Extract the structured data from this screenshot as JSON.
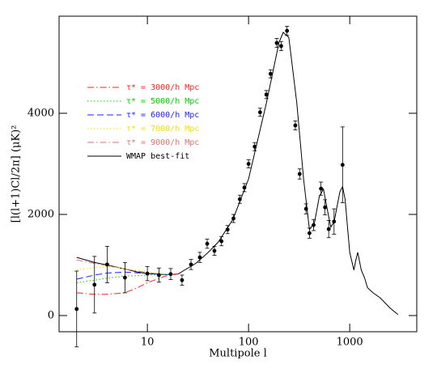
{
  "chart_data": {
    "type": "line",
    "x_label": "Multipole l",
    "y_label": "[l(l+1)Cl/2π] (μK)²",
    "xscale": "log",
    "xlim": [
      1.34,
      4600
    ],
    "ylim": [
      -320,
      5920
    ],
    "xticks": [
      10,
      100,
      1000
    ],
    "yticks": [
      0,
      2000,
      4000
    ],
    "series": [
      {
        "name": "τ* = 3000/h Mpc",
        "color": "#ff2020",
        "dash": "dashdot",
        "x": [
          2,
          3,
          4,
          6,
          8,
          10,
          15,
          20
        ],
        "values": [
          450,
          420,
          420,
          450,
          550,
          650,
          780,
          820
        ]
      },
      {
        "name": "τ* = 5000/h Mpc",
        "color": "#00d000",
        "dash": "dotted",
        "x": [
          2,
          3,
          4,
          6,
          8,
          10,
          15,
          20
        ],
        "values": [
          650,
          700,
          740,
          780,
          790,
          800,
          810,
          820
        ]
      },
      {
        "name": "τ* = 6000/h Mpc",
        "color": "#2020ff",
        "dash": "dashed",
        "x": [
          2,
          3,
          4,
          6,
          8,
          10,
          15,
          20
        ],
        "values": [
          720,
          800,
          840,
          860,
          845,
          830,
          810,
          820
        ]
      },
      {
        "name": "τ* = 7000/h Mpc",
        "color": "#f0e000",
        "dash": "dotted",
        "x": [
          2,
          3,
          4,
          6,
          8,
          10,
          15,
          20
        ],
        "values": [
          900,
          950,
          970,
          930,
          890,
          860,
          815,
          820
        ]
      },
      {
        "name": "τ* = 9000/h Mpc",
        "color": "#e07070",
        "dash": "dashdot",
        "x": [
          2,
          3,
          4,
          6,
          8,
          10,
          15,
          20
        ],
        "values": [
          1100,
          1030,
          990,
          920,
          880,
          850,
          810,
          820
        ]
      },
      {
        "name": "WMAP best-fit",
        "color": "#000000",
        "dash": "solid",
        "x": [
          2,
          3,
          4,
          6,
          8,
          10,
          15,
          20,
          30,
          40,
          50,
          70,
          100,
          150,
          200,
          220,
          250,
          300,
          350,
          400,
          450,
          500,
          550,
          600,
          650,
          700,
          800,
          850,
          900,
          1000,
          1100,
          1150,
          1200,
          1300,
          1400,
          1500,
          1700,
          2000,
          2500,
          3000
        ],
        "values": [
          1150,
          1050,
          1000,
          920,
          860,
          830,
          810,
          820,
          1030,
          1250,
          1450,
          1900,
          2700,
          4200,
          5400,
          5600,
          5500,
          4200,
          2700,
          1700,
          1850,
          2350,
          2500,
          2100,
          1750,
          1850,
          2450,
          2550,
          2300,
          1250,
          900,
          1100,
          1250,
          900,
          750,
          550,
          450,
          350,
          150,
          20
        ]
      }
    ],
    "measurements": {
      "color": "#000000",
      "x": [
        2,
        3,
        4,
        6,
        10,
        13,
        17,
        22,
        27,
        33,
        39,
        46,
        54,
        62,
        71,
        82,
        91,
        100,
        115,
        130,
        150,
        165,
        190,
        210,
        240,
        290,
        320,
        370,
        400,
        440,
        520,
        570,
        620,
        700,
        850
      ],
      "values": [
        130,
        610,
        1010,
        750,
        830,
        800,
        820,
        700,
        1010,
        1150,
        1420,
        1280,
        1470,
        1700,
        1920,
        2300,
        2530,
        3000,
        3340,
        4020,
        4370,
        4780,
        5390,
        5330,
        5630,
        3760,
        2800,
        2110,
        1630,
        1790,
        2510,
        2140,
        1710,
        1860,
        2980
      ],
      "errors": [
        750,
        560,
        360,
        300,
        140,
        140,
        110,
        100,
        100,
        100,
        90,
        90,
        90,
        80,
        80,
        80,
        80,
        80,
        80,
        80,
        80,
        80,
        90,
        90,
        90,
        90,
        100,
        100,
        100,
        110,
        130,
        150,
        170,
        250,
        750
      ]
    }
  }
}
